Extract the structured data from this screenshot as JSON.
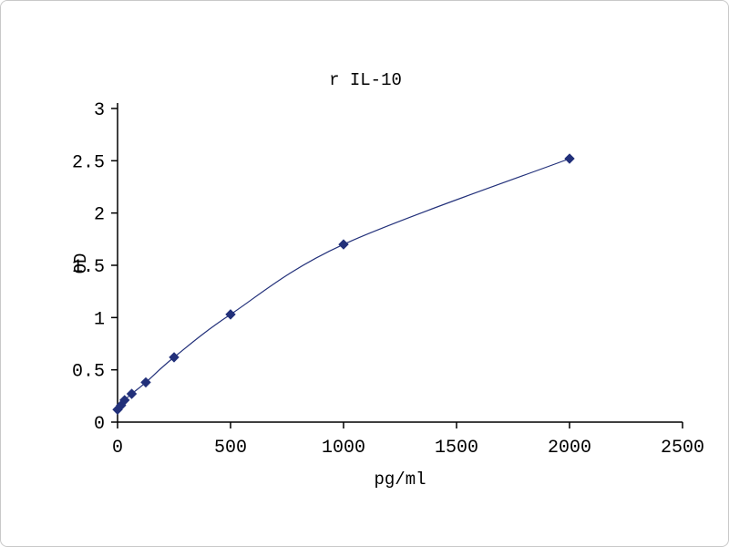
{
  "chart_data": {
    "type": "line",
    "title": "r IL-10",
    "xlabel": "pg/ml",
    "ylabel": "OD",
    "x": [
      0,
      15.6,
      31.2,
      62.5,
      125,
      250,
      500,
      1000,
      2000
    ],
    "y": [
      0.12,
      0.16,
      0.21,
      0.27,
      0.38,
      0.62,
      1.03,
      1.7,
      2.52
    ],
    "xlim": [
      0,
      2500
    ],
    "ylim": [
      0,
      3
    ],
    "x_tick_values": [
      0,
      500,
      1000,
      1500,
      2000,
      2500
    ],
    "x_tick_labels": [
      "0",
      "500",
      "1000",
      "1500",
      "2000",
      "2500"
    ],
    "y_tick_values": [
      0,
      0.5,
      1,
      1.5,
      2,
      2.5,
      3
    ],
    "y_tick_labels": [
      "0",
      "0.5",
      "1",
      "1.5",
      "2",
      "2.5",
      "3"
    ],
    "grid": false,
    "legend": "none",
    "marker": "diamond",
    "line_color": "#22307a",
    "marker_color": "#22307a",
    "axis_color": "#000000"
  }
}
